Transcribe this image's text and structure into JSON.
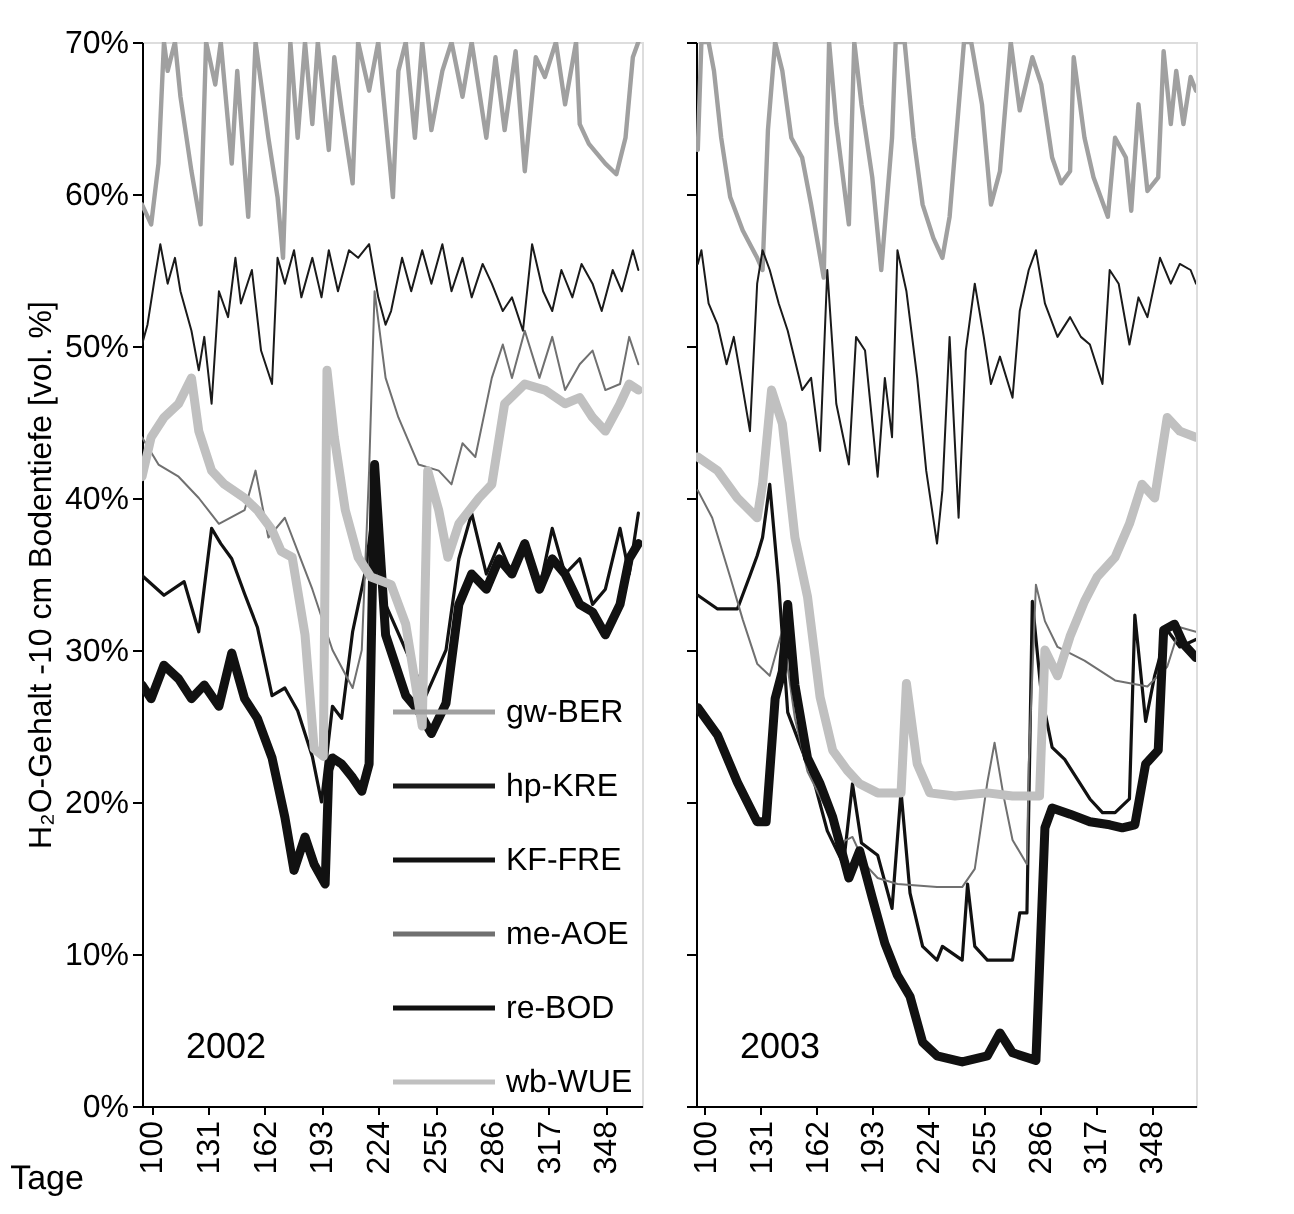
{
  "chart_data": [
    {
      "type": "line",
      "ylabel": "H₂O-Gehalt -10 cm Bodentiefe [vol. %]",
      "xlabel": "Tage",
      "annotations": [
        "2002"
      ],
      "legend": "bottom right",
      "grid": false,
      "xlim": [
        95,
        368
      ],
      "xticks": [
        100,
        131,
        162,
        193,
        224,
        255,
        286,
        317,
        348
      ],
      "ylim": [
        0,
        70
      ],
      "yticks": [
        {
          "value": 0,
          "label": "0%"
        },
        {
          "value": 10,
          "label": "10%"
        },
        {
          "value": 20,
          "label": "20%"
        },
        {
          "value": 30,
          "label": "30%"
        },
        {
          "value": 40,
          "label": "40%"
        },
        {
          "value": 50,
          "label": "50%"
        },
        {
          "value": 60,
          "label": "60%"
        },
        {
          "value": 70,
          "label": "70%"
        }
      ],
      "series": [
        {
          "name": "gw-BER",
          "color": "#a0a0a0",
          "x": [
            95,
            100,
            104,
            107,
            109,
            113,
            116,
            122,
            127,
            130,
            135,
            138,
            144,
            147,
            153,
            157,
            164,
            169,
            172,
            176,
            180,
            184,
            188,
            191,
            197,
            200,
            204,
            210,
            213,
            219,
            224,
            230,
            232,
            235,
            239,
            244,
            248,
            253,
            259,
            264,
            270,
            275,
            283,
            288,
            293,
            299,
            304,
            310,
            315,
            321,
            326,
            332,
            334,
            339,
            348,
            354,
            359,
            363,
            366
          ],
          "values": [
            59.3,
            58.0,
            62.0,
            70,
            68.1,
            70,
            66.4,
            61.5,
            58.0,
            70,
            67.2,
            70,
            62.0,
            68.1,
            58.5,
            70,
            63.7,
            59.8,
            55.8,
            70,
            63.7,
            70,
            64.6,
            70,
            62.9,
            69.0,
            65.5,
            60.7,
            70,
            66.8,
            70,
            62.4,
            59.8,
            68.1,
            70,
            63.7,
            70,
            64.2,
            68.1,
            70,
            66.4,
            70,
            63.7,
            69.0,
            64.2,
            69.4,
            61.5,
            69.0,
            67.7,
            70,
            65.9,
            70,
            64.6,
            63.3,
            62.0,
            61.3,
            63.7,
            69.0,
            70
          ]
        },
        {
          "name": "hp-KRE",
          "color": "#1a1a1a",
          "x": [
            95,
            98,
            102,
            105,
            109,
            113,
            116,
            122,
            126,
            129,
            133,
            137,
            142,
            146,
            149,
            155,
            160,
            166,
            169,
            173,
            178,
            182,
            188,
            193,
            197,
            202,
            208,
            213,
            219,
            224,
            228,
            231,
            237,
            242,
            248,
            253,
            259,
            264,
            270,
            275,
            281,
            286,
            292,
            297,
            303,
            308,
            314,
            319,
            324,
            330,
            335,
            341,
            346,
            352,
            357,
            363,
            366
          ],
          "values": [
            50.1,
            51.4,
            54.5,
            56.7,
            54.1,
            55.8,
            53.6,
            51.0,
            48.4,
            50.6,
            46.2,
            53.6,
            51.9,
            55.8,
            52.8,
            55.0,
            49.7,
            47.5,
            55.8,
            54.1,
            56.3,
            53.2,
            55.8,
            53.2,
            56.3,
            53.6,
            56.3,
            55.8,
            56.7,
            53.2,
            51.4,
            52.3,
            55.8,
            53.6,
            56.3,
            54.1,
            56.7,
            53.6,
            55.8,
            53.2,
            55.4,
            54.1,
            52.3,
            53.2,
            51.0,
            56.7,
            53.6,
            52.3,
            55.0,
            53.2,
            55.4,
            54.1,
            52.3,
            55.0,
            53.6,
            56.3,
            55.0
          ]
        },
        {
          "name": "KF-FRE",
          "color": "#111111",
          "x": [
            95,
            107,
            118,
            126,
            133,
            138,
            144,
            151,
            158,
            166,
            173,
            180,
            188,
            193,
            199,
            204,
            210,
            217,
            222,
            228,
            239,
            250,
            261,
            268,
            275,
            283,
            290,
            297,
            304,
            312,
            319,
            326,
            334,
            341,
            348,
            356,
            361,
            366
          ],
          "values": [
            34.9,
            33.6,
            34.5,
            31.2,
            38.0,
            37.0,
            36.0,
            33.7,
            31.5,
            27.0,
            27.5,
            26.0,
            23.0,
            20.0,
            26.3,
            25.5,
            31.2,
            35.2,
            40.0,
            33.0,
            30.0,
            27.0,
            30.0,
            36.0,
            39.0,
            35.0,
            37.0,
            35.0,
            37.0,
            34.0,
            38.0,
            35.0,
            36.0,
            33.0,
            34.0,
            38.0,
            35.0,
            39.0
          ]
        },
        {
          "name": "me-AOE",
          "color": "#707070",
          "x": [
            95,
            104,
            115,
            126,
            137,
            151,
            157,
            164,
            173,
            180,
            188,
            199,
            210,
            215,
            219,
            222,
            228,
            235,
            246,
            257,
            264,
            270,
            277,
            286,
            292,
            297,
            304,
            312,
            319,
            326,
            334,
            341,
            348,
            356,
            361,
            366
          ],
          "values": [
            44.0,
            42.2,
            41.4,
            40.0,
            38.3,
            39.2,
            41.8,
            37.4,
            38.7,
            36.5,
            34.0,
            30.0,
            27.5,
            30.0,
            41.8,
            53.6,
            47.9,
            45.3,
            42.2,
            41.8,
            40.9,
            43.6,
            42.7,
            47.9,
            50.1,
            47.9,
            51.0,
            47.9,
            50.6,
            47.1,
            48.8,
            49.7,
            47.1,
            47.5,
            50.6,
            48.8
          ]
        },
        {
          "name": "re-BOD",
          "color": "#111111",
          "x": [
            95,
            100,
            107,
            115,
            122,
            129,
            137,
            144,
            151,
            158,
            166,
            173,
            178,
            184,
            189,
            195,
            197,
            199,
            204,
            210,
            215,
            219,
            222,
            228,
            239,
            246,
            253,
            261,
            268,
            275,
            283,
            290,
            297,
            304,
            312,
            319,
            326,
            334,
            341,
            348,
            356,
            361,
            366
          ],
          "values": [
            27.7,
            26.8,
            29.0,
            28.1,
            26.8,
            27.7,
            26.3,
            29.8,
            26.8,
            25.5,
            22.9,
            19.0,
            15.5,
            17.7,
            15.9,
            14.6,
            22.1,
            22.9,
            22.5,
            21.6,
            20.7,
            22.5,
            42.2,
            31.0,
            27.0,
            26.0,
            24.5,
            26.5,
            33.0,
            35.0,
            34.0,
            36.0,
            35.0,
            37.0,
            34.0,
            36.0,
            35.0,
            33.0,
            32.5,
            31.0,
            33.0,
            36.0,
            37.0
          ]
        },
        {
          "name": "wb-WUE",
          "color": "#c0c0c0",
          "x": [
            95,
            100,
            107,
            115,
            122,
            126,
            133,
            140,
            151,
            158,
            166,
            171,
            177,
            184,
            189,
            194,
            196,
            200,
            206,
            213,
            220,
            231,
            239,
            248,
            251,
            257,
            262,
            268,
            279,
            286,
            293,
            304,
            315,
            326,
            334,
            341,
            348,
            356,
            361,
            366
          ],
          "values": [
            41.4,
            44.0,
            45.3,
            46.2,
            47.9,
            44.4,
            41.8,
            40.9,
            40.0,
            39.2,
            37.9,
            36.5,
            36.1,
            31.0,
            23.5,
            23.0,
            48.4,
            44.0,
            39.2,
            36.1,
            34.8,
            34.3,
            31.7,
            25.0,
            41.8,
            39.2,
            36.1,
            38.3,
            40.0,
            40.9,
            46.2,
            47.5,
            47.1,
            46.2,
            46.6,
            45.3,
            44.4,
            46.2,
            47.5,
            47.1
          ]
        }
      ]
    },
    {
      "type": "line",
      "annotations": [
        "2003"
      ],
      "tick_labels": "x",
      "grid": false,
      "xlim": [
        95,
        373
      ],
      "xticks": [
        100,
        131,
        162,
        193,
        224,
        255,
        286,
        317,
        348
      ],
      "ylim": [
        0,
        70
      ],
      "yticks": [
        {
          "value": 0,
          "label": null
        },
        {
          "value": 10,
          "label": null
        },
        {
          "value": 20,
          "label": null
        },
        {
          "value": 30,
          "label": null
        },
        {
          "value": 40,
          "label": null
        },
        {
          "value": 50,
          "label": null
        },
        {
          "value": 60,
          "label": null
        },
        {
          "value": 70,
          "label": null
        }
      ],
      "series": [
        {
          "color": "#a0a0a0",
          "x": [
            96,
            98,
            102,
            105,
            109,
            114,
            121,
            129,
            132,
            135,
            139,
            143,
            148,
            154,
            159,
            166,
            169,
            173,
            180,
            183,
            187,
            193,
            198,
            204,
            206,
            211,
            216,
            221,
            227,
            232,
            236,
            244,
            248,
            254,
            259,
            264,
            270,
            275,
            282,
            287,
            293,
            298,
            303,
            305,
            311,
            316,
            324,
            328,
            334,
            337,
            341,
            346,
            352,
            355,
            359,
            362,
            366,
            370,
            373
          ],
          "values": [
            62.9,
            70,
            70,
            68.1,
            63.7,
            59.8,
            57.6,
            55.8,
            55.0,
            64.2,
            70,
            68.1,
            63.7,
            62.4,
            59.3,
            54.5,
            70,
            64.6,
            58.0,
            70,
            65.9,
            61.1,
            55.0,
            63.7,
            70,
            70,
            63.7,
            59.3,
            57.1,
            55.8,
            58.5,
            70,
            70,
            65.9,
            59.3,
            61.5,
            70,
            65.5,
            69.0,
            67.2,
            62.4,
            60.7,
            61.5,
            69.0,
            63.7,
            61.1,
            58.5,
            63.7,
            62.4,
            58.9,
            65.9,
            60.2,
            61.1,
            69.4,
            64.6,
            68.1,
            64.6,
            67.7,
            66.8
          ]
        },
        {
          "color": "#1a1a1a",
          "x": [
            96,
            98,
            102,
            107,
            112,
            116,
            120,
            125,
            129,
            132,
            136,
            141,
            146,
            154,
            159,
            164,
            168,
            173,
            180,
            184,
            189,
            196,
            200,
            204,
            207,
            212,
            218,
            223,
            229,
            232,
            236,
            241,
            245,
            250,
            255,
            259,
            264,
            271,
            275,
            280,
            284,
            289,
            296,
            303,
            309,
            314,
            321,
            325,
            330,
            336,
            341,
            346,
            353,
            359,
            364,
            370,
            373
          ],
          "values": [
            55.4,
            56.3,
            52.8,
            51.4,
            48.8,
            50.6,
            47.9,
            44.4,
            54.1,
            56.3,
            55.0,
            52.8,
            51.0,
            47.1,
            47.9,
            43.1,
            55.0,
            46.2,
            42.2,
            50.6,
            49.7,
            41.4,
            47.9,
            44.0,
            56.3,
            53.6,
            47.9,
            41.8,
            37.0,
            40.5,
            50.6,
            38.7,
            49.7,
            54.1,
            50.6,
            47.5,
            49.3,
            46.6,
            52.3,
            55.0,
            56.3,
            52.8,
            50.6,
            51.9,
            50.6,
            50.1,
            47.5,
            55.0,
            54.1,
            50.1,
            53.2,
            51.9,
            55.8,
            54.1,
            55.4,
            55.0,
            54.1
          ]
        },
        {
          "color": "#111111",
          "x": [
            96,
            107,
            118,
            125,
            129,
            132,
            136,
            141,
            146,
            154,
            161,
            168,
            177,
            182,
            187,
            196,
            204,
            209,
            214,
            221,
            229,
            232,
            243,
            246,
            250,
            257,
            264,
            271,
            275,
            279,
            282,
            287,
            293,
            300,
            307,
            314,
            321,
            328,
            336,
            339,
            345,
            350,
            357,
            364,
            373
          ],
          "values": [
            33.6,
            32.7,
            32.7,
            34.9,
            36.2,
            37.4,
            40.9,
            34.3,
            25.9,
            23.4,
            21.2,
            18.1,
            15.9,
            21.2,
            17.3,
            16.5,
            13.0,
            20.7,
            14.0,
            10.5,
            9.6,
            10.5,
            9.6,
            14.6,
            10.5,
            9.6,
            9.6,
            9.6,
            12.7,
            12.7,
            33.2,
            27.1,
            23.6,
            22.8,
            21.5,
            20.2,
            19.3,
            19.3,
            20.2,
            32.3,
            25.3,
            28.3,
            31.3,
            30.2,
            30.7
          ]
        },
        {
          "color": "#707070",
          "x": [
            96,
            104,
            114,
            121,
            129,
            136,
            143,
            150,
            157,
            168,
            175,
            182,
            189,
            196,
            207,
            229,
            243,
            250,
            257,
            261,
            266,
            271,
            279,
            280,
            284,
            289,
            296,
            311,
            328,
            346,
            357,
            364,
            373
          ],
          "values": [
            40.5,
            38.7,
            34.8,
            32.0,
            29.1,
            28.3,
            31.3,
            25.5,
            22.0,
            19.4,
            17.3,
            17.7,
            15.9,
            15.0,
            14.6,
            14.4,
            14.4,
            15.6,
            21.3,
            23.9,
            20.4,
            17.5,
            15.9,
            22.5,
            34.3,
            31.9,
            30.2,
            29.3,
            28.0,
            27.6,
            28.9,
            31.5,
            31.2
          ]
        },
        {
          "color": "#111111",
          "x": [
            96,
            107,
            118,
            129,
            134,
            139,
            143,
            146,
            150,
            157,
            164,
            171,
            180,
            186,
            193,
            200,
            207,
            214,
            221,
            229,
            243,
            257,
            264,
            271,
            284,
            289,
            293,
            303,
            314,
            325,
            332,
            339,
            345,
            352,
            355,
            361,
            366,
            373
          ],
          "values": [
            26.2,
            24.4,
            21.3,
            18.7,
            18.7,
            26.8,
            28.6,
            33.0,
            27.7,
            22.9,
            21.2,
            19.0,
            15.0,
            16.8,
            13.7,
            10.7,
            8.6,
            7.2,
            4.2,
            3.3,
            2.9,
            3.3,
            4.8,
            3.5,
            3.0,
            18.3,
            19.6,
            19.2,
            18.7,
            18.5,
            18.3,
            18.5,
            22.5,
            23.4,
            31.3,
            31.7,
            30.4,
            29.5
          ]
        },
        {
          "color": "#c0c0c0",
          "x": [
            96,
            107,
            118,
            129,
            132,
            137,
            143,
            150,
            157,
            164,
            171,
            179,
            186,
            196,
            209,
            212,
            218,
            225,
            239,
            257,
            271,
            286,
            289,
            296,
            303,
            311,
            318,
            328,
            336,
            343,
            350,
            357,
            364,
            373
          ],
          "values": [
            42.7,
            41.8,
            40.0,
            38.7,
            40.9,
            47.1,
            44.9,
            37.4,
            33.5,
            26.9,
            23.4,
            22.1,
            21.2,
            20.6,
            20.6,
            27.8,
            22.5,
            20.6,
            20.4,
            20.6,
            20.4,
            20.4,
            30.0,
            28.3,
            30.9,
            33.2,
            34.8,
            36.1,
            38.3,
            40.9,
            40.0,
            45.3,
            44.4,
            44.0
          ]
        }
      ]
    }
  ]
}
